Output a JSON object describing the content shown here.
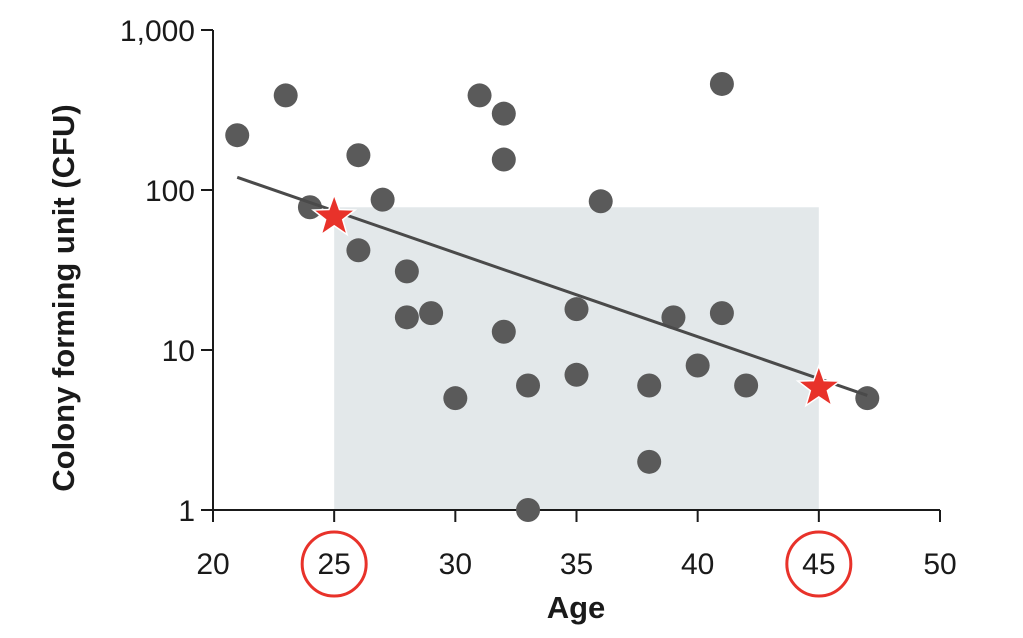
{
  "chart_data": {
    "type": "scatter",
    "xlabel": "Age",
    "ylabel": "Colony forming unit (CFU)",
    "xlim": [
      20,
      50
    ],
    "ylim": [
      1,
      1000
    ],
    "y_scale": "log",
    "x_ticks": [
      20,
      25,
      30,
      35,
      40,
      45,
      50
    ],
    "x_tick_labels": [
      "20",
      "25",
      "30",
      "35",
      "40",
      "45",
      "50"
    ],
    "y_ticks": [
      1,
      10,
      100,
      1000
    ],
    "y_tick_labels": [
      "1",
      "10",
      "100",
      "1,000"
    ],
    "grid": false,
    "legend": "none",
    "colors": {
      "points": "#5a5a5a",
      "trend_line": "#4a4a4a",
      "shaded_band": "#e3e8ea",
      "highlight": "#e8322a",
      "axis": "#1a1a1a"
    },
    "points": [
      {
        "x": 21,
        "y": 220
      },
      {
        "x": 23,
        "y": 390
      },
      {
        "x": 24,
        "y": 78
      },
      {
        "x": 26,
        "y": 165
      },
      {
        "x": 26,
        "y": 42
      },
      {
        "x": 27,
        "y": 87
      },
      {
        "x": 28,
        "y": 31
      },
      {
        "x": 28,
        "y": 16
      },
      {
        "x": 29,
        "y": 17
      },
      {
        "x": 30,
        "y": 5
      },
      {
        "x": 31,
        "y": 390
      },
      {
        "x": 32,
        "y": 300
      },
      {
        "x": 32,
        "y": 155
      },
      {
        "x": 32,
        "y": 13
      },
      {
        "x": 33,
        "y": 6
      },
      {
        "x": 33,
        "y": 1
      },
      {
        "x": 35,
        "y": 18
      },
      {
        "x": 35,
        "y": 7
      },
      {
        "x": 36,
        "y": 85
      },
      {
        "x": 38,
        "y": 6
      },
      {
        "x": 38,
        "y": 2
      },
      {
        "x": 39,
        "y": 16
      },
      {
        "x": 40,
        "y": 8
      },
      {
        "x": 41,
        "y": 460
      },
      {
        "x": 41,
        "y": 17
      },
      {
        "x": 42,
        "y": 6
      },
      {
        "x": 47,
        "y": 5
      }
    ],
    "trend_line": {
      "x": [
        21,
        47
      ],
      "y": [
        120,
        5.2
      ]
    },
    "highlight_points": [
      {
        "x": 25,
        "y": 68
      },
      {
        "x": 45,
        "y": 5.8
      }
    ],
    "shaded_region": {
      "x": [
        25,
        45
      ],
      "y": [
        1,
        78
      ]
    },
    "circled_ticks": [
      25,
      45
    ]
  }
}
